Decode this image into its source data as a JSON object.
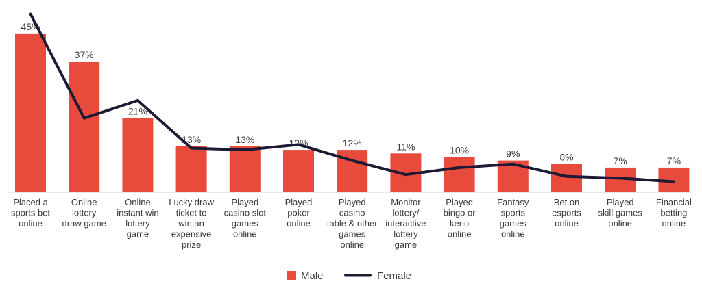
{
  "chart_data": {
    "type": "bar",
    "categories": [
      [
        "Placed a",
        "sports bet",
        "online"
      ],
      [
        "Online",
        "lottery",
        "draw game"
      ],
      [
        "Online",
        "instant win",
        "lottery",
        "game"
      ],
      [
        "Lucky draw",
        "ticket to",
        "win an",
        "expensive",
        "prize"
      ],
      [
        "Played",
        "casino slot",
        "games",
        "online"
      ],
      [
        "Played",
        "poker",
        "online"
      ],
      [
        "Played",
        "casino",
        "table & other",
        "games",
        "online"
      ],
      [
        "Monitor",
        "lottery/",
        "interactive",
        "lottery",
        "game"
      ],
      [
        "Played",
        "bingo or",
        "keno",
        "online"
      ],
      [
        "Fantasy",
        "sports",
        "games",
        "online"
      ],
      [
        "Bet on",
        "esports",
        "online"
      ],
      [
        "Played",
        "skill games",
        "online"
      ],
      [
        "Financial",
        "betting",
        "online"
      ]
    ],
    "series": [
      {
        "name": "Male",
        "type": "bar",
        "color": "#e84a3c",
        "values": [
          45,
          37,
          21,
          13,
          13,
          12,
          12,
          11,
          10,
          9,
          8,
          7,
          7
        ],
        "labels": [
          "45%",
          "37%",
          "21%",
          "13%",
          "13%",
          "12%",
          "12%",
          "11%",
          "10%",
          "9%",
          "8%",
          "7%",
          "7%"
        ]
      },
      {
        "name": "Female",
        "type": "line",
        "color": "#1c1b35",
        "values": [
          50.5,
          21,
          26,
          12.5,
          12,
          13.5,
          9,
          5,
          7,
          8,
          4.5,
          4,
          3
        ]
      }
    ],
    "ylim": [
      0,
      51
    ],
    "grid": false,
    "legend": "bottom-center"
  },
  "legend": {
    "male": "Male",
    "female": "Female"
  }
}
